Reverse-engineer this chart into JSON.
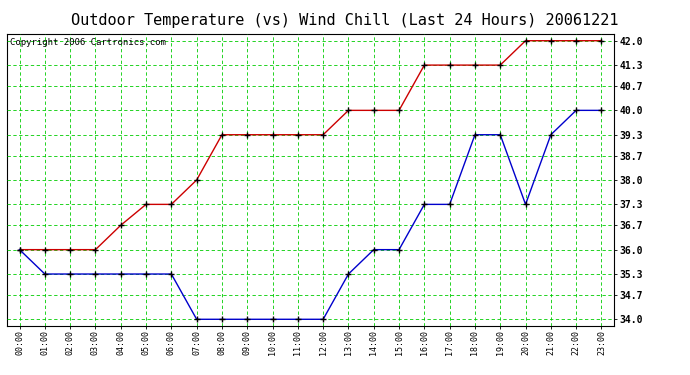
{
  "title": "Outdoor Temperature (vs) Wind Chill (Last 24 Hours) 20061221",
  "copyright": "Copyright 2006 Cartronics.com",
  "x_labels": [
    "00:00",
    "01:00",
    "02:00",
    "03:00",
    "04:00",
    "05:00",
    "06:00",
    "07:00",
    "08:00",
    "09:00",
    "10:00",
    "11:00",
    "12:00",
    "13:00",
    "14:00",
    "15:00",
    "16:00",
    "17:00",
    "18:00",
    "19:00",
    "20:00",
    "21:00",
    "22:00",
    "23:00"
  ],
  "red_data": [
    36.0,
    36.0,
    36.0,
    36.0,
    36.7,
    37.3,
    37.3,
    38.0,
    39.3,
    39.3,
    39.3,
    39.3,
    39.3,
    40.0,
    40.0,
    40.0,
    41.3,
    41.3,
    41.3,
    41.3,
    42.0,
    42.0,
    42.0,
    42.0
  ],
  "blue_data": [
    36.0,
    35.3,
    35.3,
    35.3,
    35.3,
    35.3,
    35.3,
    34.0,
    34.0,
    34.0,
    34.0,
    34.0,
    34.0,
    35.3,
    36.0,
    36.0,
    37.3,
    37.3,
    39.3,
    39.3,
    37.3,
    39.3,
    40.0,
    40.0
  ],
  "yticks": [
    34.0,
    34.7,
    35.3,
    36.0,
    36.7,
    37.3,
    38.0,
    38.7,
    39.3,
    40.0,
    40.7,
    41.3,
    42.0
  ],
  "ylim": [
    33.8,
    42.2
  ],
  "red_color": "#cc0000",
  "blue_color": "#0000cc",
  "grid_color": "#00cc00",
  "bg_color": "#ffffff",
  "title_fontsize": 11,
  "copyright_fontsize": 6.5
}
